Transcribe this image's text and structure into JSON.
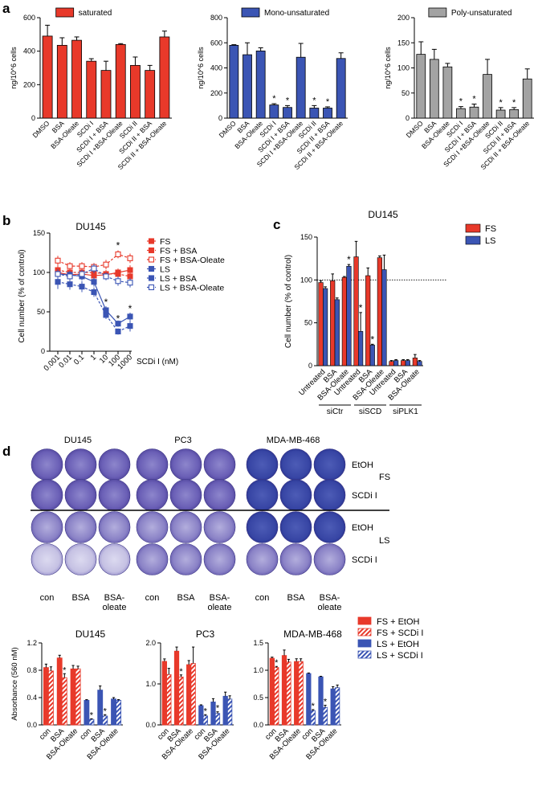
{
  "colors": {
    "red": "#e8392a",
    "blue": "#3b55b4",
    "gray": "#a3a3a3",
    "dish_purple": "#6d63b8",
    "dish_dense": "#3c4aa6",
    "dish_pale": "#c6c3e4"
  },
  "panel_labels": {
    "a": "a",
    "b": "b",
    "c": "c",
    "d": "d"
  },
  "chart_data": [
    {
      "id": "a1",
      "type": "bar",
      "title": "",
      "legend": "saturated",
      "color": "red",
      "ylabel": "ng/10^6 cells",
      "ylim": [
        0,
        600
      ],
      "yticks": [
        "0",
        "200",
        "400",
        "600"
      ],
      "categories": [
        "DMSO",
        "BSA",
        "BSA-Oleate",
        "SCDi I",
        "SCDi I + BSA",
        "SCDi I +BSA-Oleate",
        "SCDi II",
        "SCDi II + BSA",
        "SCDi II + BSA-Oleate"
      ],
      "values": [
        490,
        435,
        465,
        340,
        285,
        440,
        315,
        285,
        485
      ],
      "errors": [
        65,
        45,
        20,
        15,
        55,
        5,
        50,
        30,
        35
      ],
      "stars": [
        "",
        "",
        "",
        "",
        "",
        "",
        "",
        "",
        ""
      ]
    },
    {
      "id": "a2",
      "type": "bar",
      "title": "",
      "legend": "Mono-unsaturated",
      "color": "blue",
      "ylabel": "ng/10^6 cells",
      "ylim": [
        0,
        800
      ],
      "yticks": [
        "0",
        "200",
        "400",
        "600",
        "800"
      ],
      "categories": [
        "DMSO",
        "BSA",
        "BSA-Oleate",
        "SCDi I",
        "SCDi I + BSA",
        "SCDi I +BSA-Oleate",
        "SCDi II",
        "SCDi II + BSA",
        "SCDi II + BSA-Oleate"
      ],
      "values": [
        580,
        505,
        535,
        105,
        85,
        485,
        80,
        80,
        475
      ],
      "errors": [
        5,
        95,
        25,
        10,
        15,
        110,
        20,
        10,
        45
      ],
      "stars": [
        "",
        "",
        "",
        "*",
        "*",
        "",
        "*",
        "*",
        ""
      ]
    },
    {
      "id": "a3",
      "type": "bar",
      "title": "",
      "legend": "Poly-unsaturated",
      "color": "gray",
      "ylabel": "ng/10^6 cells",
      "ylim": [
        0,
        200
      ],
      "yticks": [
        "0",
        "50",
        "100",
        "150",
        "200"
      ],
      "categories": [
        "DMSO",
        "BSA",
        "BSA-Oleate",
        "SCDi I",
        "SCDi I + BSA",
        "SCDi I +BSA-Oleate",
        "SCDi II",
        "SCDi II + BSA",
        "SCDi II + BSA-Oleate"
      ],
      "values": [
        127,
        117,
        102,
        19,
        22,
        87,
        16,
        17,
        78
      ],
      "errors": [
        25,
        20,
        7,
        4,
        6,
        30,
        5,
        4,
        20
      ],
      "stars": [
        "",
        "",
        "",
        "*",
        "*",
        "",
        "*",
        "*",
        ""
      ]
    },
    {
      "id": "b",
      "type": "line",
      "title": "DU145",
      "xscale": "log",
      "xlabel": "SCDi I (nM)",
      "ylabel": "Cell number (% of control)",
      "ylim": [
        0,
        150
      ],
      "yticks": [
        "0",
        "50",
        "100",
        "150"
      ],
      "x": [
        0.001,
        0.01,
        0.1,
        1,
        10,
        100,
        1000
      ],
      "xticklabels": [
        "0.001",
        "0.01",
        "0.1",
        "1",
        "10",
        "100",
        "1000"
      ],
      "series": [
        {
          "name": "FS",
          "color": "red",
          "filled": true,
          "dashed": false,
          "values": [
            100,
            97,
            98,
            96,
            97,
            100,
            103
          ],
          "errors": [
            5,
            4,
            4,
            4,
            5,
            5,
            6
          ]
        },
        {
          "name": "FS + BSA",
          "color": "red",
          "filled": true,
          "dashed": true,
          "values": [
            103,
            100,
            100,
            100,
            98,
            98,
            95
          ],
          "errors": [
            6,
            5,
            5,
            5,
            5,
            6,
            6
          ]
        },
        {
          "name": "FS + BSA-Oleate",
          "color": "red",
          "filled": false,
          "dashed": true,
          "values": [
            115,
            108,
            108,
            107,
            110,
            123,
            118
          ],
          "errors": [
            6,
            5,
            5,
            5,
            6,
            5,
            6
          ]
        },
        {
          "name": "LS",
          "color": "blue",
          "filled": true,
          "dashed": false,
          "values": [
            98,
            97,
            95,
            88,
            52,
            35,
            44
          ],
          "errors": [
            6,
            5,
            5,
            6,
            5,
            4,
            5
          ]
        },
        {
          "name": "LS + BSA",
          "color": "blue",
          "filled": true,
          "dashed": true,
          "values": [
            88,
            85,
            82,
            75,
            46,
            25,
            32
          ],
          "errors": [
            9,
            7,
            7,
            6,
            5,
            4,
            7
          ]
        },
        {
          "name": "LS + BSA-Oleate",
          "color": "blue",
          "filled": false,
          "dashed": true,
          "values": [
            98,
            95,
            98,
            105,
            95,
            89,
            87
          ],
          "errors": [
            6,
            5,
            5,
            6,
            5,
            6,
            6
          ]
        }
      ],
      "stars": [
        {
          "x": 10,
          "y": 58,
          "text": "*"
        },
        {
          "x": 100,
          "y": 130,
          "text": "*"
        },
        {
          "x": 100,
          "y": 37,
          "text": "*"
        },
        {
          "x": 1000,
          "y": 50,
          "text": "*"
        }
      ]
    },
    {
      "id": "c",
      "type": "bar",
      "title": "DU145",
      "ylabel": "Cell number (% of control)",
      "ylim": [
        0,
        150
      ],
      "yticks": [
        "0",
        "50",
        "100",
        "150"
      ],
      "refline": 100,
      "categories": [
        "Untreated",
        "BSA",
        "BSA-Oleate",
        "Untreated",
        "BSA",
        "BSA-Oleate",
        "Untreated",
        "BSA",
        "BSA-Oleate"
      ],
      "groups": [
        {
          "label": "siCtr",
          "from": 0,
          "to": 2
        },
        {
          "label": "siSCD",
          "from": 3,
          "to": 5
        },
        {
          "label": "siPLK1",
          "from": 6,
          "to": 8
        }
      ],
      "series": [
        {
          "name": "FS",
          "color": "red",
          "values": [
            97,
            99,
            103,
            127,
            105,
            126,
            5,
            6,
            9
          ],
          "errors": [
            2,
            8,
            1,
            18,
            9,
            2,
            1,
            1,
            4
          ]
        },
        {
          "name": "LS",
          "color": "blue",
          "values": [
            90,
            77,
            116,
            40,
            24,
            112,
            6,
            6,
            5
          ],
          "errors": [
            2,
            2,
            2,
            22,
            1,
            17,
            1,
            1,
            1
          ]
        }
      ],
      "stars": [
        {
          "index": 2,
          "series": 1,
          "text": "*"
        },
        {
          "index": 3,
          "series": 1,
          "text": "*"
        },
        {
          "index": 4,
          "series": 1,
          "text": "*"
        }
      ]
    },
    {
      "id": "d1",
      "type": "bar",
      "title": "DU145",
      "ylabel": "Absorbance (560 nM)",
      "ylim": [
        0,
        1.2
      ],
      "yticks": [
        "0.0",
        "0.4",
        "0.8",
        "1.2"
      ],
      "categories": [
        "con",
        "BSA",
        "BSA-Oleate",
        "con",
        "BSA",
        "BSA-Oleate"
      ],
      "groups": [
        {
          "label": "FS",
          "from": 0,
          "to": 2
        },
        {
          "label": "LS",
          "from": 3,
          "to": 5
        }
      ],
      "series": [
        {
          "name": "EtOH",
          "values": [
            0.84,
            0.98,
            0.82,
            0.36,
            0.51,
            0.38
          ],
          "errors": [
            0.05,
            0.04,
            0.05,
            0.01,
            0.06,
            0.02
          ]
        },
        {
          "name": "SCDi I",
          "values": [
            0.79,
            0.69,
            0.82,
            0.08,
            0.13,
            0.36
          ],
          "errors": [
            0.06,
            0.06,
            0.04,
            0.01,
            0.02,
            0.01
          ]
        }
      ],
      "stars": [
        {
          "index": 1,
          "series": 1,
          "text": "*"
        },
        {
          "index": 3,
          "series": 1,
          "text": "*"
        },
        {
          "index": 4,
          "series": 1,
          "text": "*"
        }
      ]
    },
    {
      "id": "d2",
      "type": "bar",
      "title": "PC3",
      "ylabel": "",
      "ylim": [
        0,
        2.0
      ],
      "yticks": [
        "0.0",
        "1.0",
        "2.0"
      ],
      "categories": [
        "con",
        "BSA",
        "BSA-Oleate",
        "con",
        "BSA",
        "BSA-Oleate"
      ],
      "groups": [
        {
          "label": "FS",
          "from": 0,
          "to": 2
        },
        {
          "label": "LS",
          "from": 3,
          "to": 5
        }
      ],
      "series": [
        {
          "name": "EtOH",
          "values": [
            1.55,
            1.8,
            1.47,
            0.47,
            0.56,
            0.7
          ],
          "errors": [
            0.06,
            0.1,
            0.1,
            0.02,
            0.08,
            0.1
          ]
        },
        {
          "name": "SCDi I",
          "values": [
            1.23,
            1.17,
            1.5,
            0.22,
            0.28,
            0.63
          ],
          "errors": [
            0.15,
            0.05,
            0.4,
            0.03,
            0.04,
            0.08
          ]
        }
      ],
      "stars": [
        {
          "index": 1,
          "series": 1,
          "text": "*"
        },
        {
          "index": 3,
          "series": 1,
          "text": "*"
        },
        {
          "index": 4,
          "series": 1,
          "text": "*"
        }
      ]
    },
    {
      "id": "d3",
      "type": "bar",
      "title": "MDA-MB-468",
      "ylabel": "",
      "ylim": [
        0,
        1.5
      ],
      "yticks": [
        "0.0",
        "0.5",
        "1.0",
        "1.5"
      ],
      "categories": [
        "con",
        "BSA",
        "BSA-Oleate",
        "con",
        "BSA",
        "BSA-Oleate"
      ],
      "groups": [
        {
          "label": "FS",
          "from": 0,
          "to": 2
        },
        {
          "label": "LS",
          "from": 3,
          "to": 5
        }
      ],
      "series": [
        {
          "name": "EtOH",
          "values": [
            1.22,
            1.27,
            1.16,
            0.94,
            0.88,
            0.66
          ],
          "errors": [
            0.02,
            0.1,
            0.05,
            0.01,
            0.01,
            0.04
          ]
        },
        {
          "name": "SCDi I",
          "values": [
            1.05,
            1.15,
            1.16,
            0.26,
            0.32,
            0.68
          ],
          "errors": [
            0.02,
            0.05,
            0.05,
            0.02,
            0.04,
            0.05
          ]
        }
      ],
      "stars": [
        {
          "index": 0,
          "series": 1,
          "text": "*"
        },
        {
          "index": 3,
          "series": 1,
          "text": "*"
        },
        {
          "index": 4,
          "series": 1,
          "text": "*"
        }
      ]
    }
  ],
  "panel_d_legend": [
    {
      "label": "FS + EtOH",
      "color": "red",
      "hatched": false
    },
    {
      "label": "FS + SCDi I",
      "color": "red",
      "hatched": true
    },
    {
      "label": "LS + EtOH",
      "color": "blue",
      "hatched": false
    },
    {
      "label": "LS + SCDi I",
      "color": "blue",
      "hatched": true
    }
  ],
  "plates": {
    "cell_lines": [
      "DU145",
      "PC3",
      "MDA-MB-468"
    ],
    "row_labels": [
      "EtOH",
      "SCDi I",
      "EtOH",
      "SCDi I"
    ],
    "group_labels": [
      "FS",
      "LS"
    ],
    "col_labels": [
      "con",
      "BSA",
      "BSA-\noleate"
    ]
  }
}
